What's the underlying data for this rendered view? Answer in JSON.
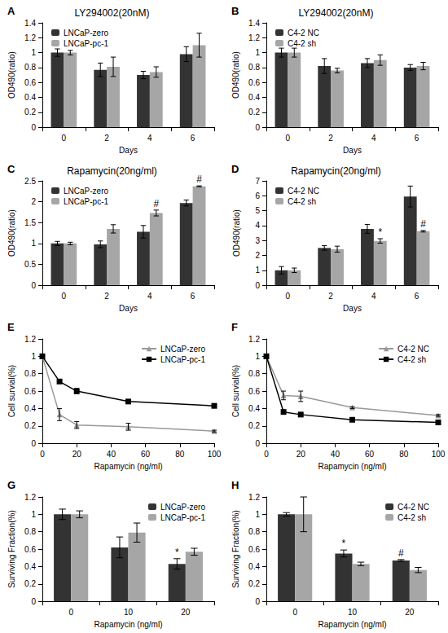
{
  "chart_data": [
    {
      "panel": "A",
      "type": "bar",
      "title": "LY294002(20nM)",
      "x_label": "Days",
      "y_label": "OD490(ratio)",
      "categories": [
        "0",
        "2",
        "4",
        "6"
      ],
      "ylim": [
        0,
        1.4
      ],
      "yticks": [
        0,
        0.2,
        0.4,
        0.6,
        0.8,
        1,
        1.2,
        1.4
      ],
      "grid": false,
      "legend": "upper left",
      "series": [
        {
          "name": "LNCaP-zero",
          "color": "#333333",
          "values": [
            1,
            0.77,
            0.7,
            0.98
          ],
          "errors": [
            0.05,
            0.09,
            0.05,
            0.1
          ]
        },
        {
          "name": "LNCaP-pc-1",
          "color": "#a6a6a6",
          "values": [
            1,
            0.81,
            0.74,
            1.1
          ],
          "errors": [
            0.03,
            0.13,
            0.07,
            0.16
          ]
        }
      ]
    },
    {
      "panel": "B",
      "type": "bar",
      "title": "LY294002(20nM)",
      "x_label": "Days",
      "y_label": "OD490(ratio)",
      "categories": [
        "0",
        "2",
        "4",
        "6"
      ],
      "ylim": [
        0,
        1.4
      ],
      "yticks": [
        0,
        0.2,
        0.4,
        0.6,
        0.8,
        1,
        1.2,
        1.4
      ],
      "grid": false,
      "legend": "upper left",
      "series": [
        {
          "name": "C4-2 NC",
          "color": "#333333",
          "values": [
            1,
            0.82,
            0.86,
            0.8
          ],
          "errors": [
            0.06,
            0.1,
            0.06,
            0.04
          ]
        },
        {
          "name": "C4-2 sh",
          "color": "#a6a6a6",
          "values": [
            1,
            0.76,
            0.9,
            0.82
          ],
          "errors": [
            0.06,
            0.03,
            0.07,
            0.05
          ]
        }
      ]
    },
    {
      "panel": "C",
      "type": "bar",
      "title": "Rapamycin(20ng/ml)",
      "x_label": "Days",
      "y_label": "OD490(ratio)",
      "categories": [
        "0",
        "2",
        "4",
        "6"
      ],
      "ylim": [
        0,
        2.5
      ],
      "yticks": [
        0,
        0.5,
        1,
        1.5,
        2,
        2.5
      ],
      "grid": false,
      "legend": "upper left",
      "series": [
        {
          "name": "LNCaP-zero",
          "color": "#333333",
          "values": [
            1,
            0.98,
            1.28,
            1.97
          ],
          "errors": [
            0.05,
            0.08,
            0.15,
            0.07
          ]
        },
        {
          "name": "LNCaP-pc-1",
          "color": "#a6a6a6",
          "values": [
            1,
            1.35,
            1.73,
            2.37
          ],
          "errors": [
            0.03,
            0.1,
            0.07,
            0.01
          ],
          "sig": [
            null,
            null,
            "#",
            "#"
          ]
        }
      ]
    },
    {
      "panel": "D",
      "type": "bar",
      "title": "Rapamycin(20ng/ml)",
      "x_label": "Days",
      "y_label": "OD490(ratio)",
      "categories": [
        "0",
        "2",
        "4",
        "6"
      ],
      "ylim": [
        0,
        7
      ],
      "yticks": [
        0,
        1,
        2,
        3,
        4,
        5,
        6,
        7
      ],
      "grid": false,
      "legend": "upper left",
      "series": [
        {
          "name": "C4-2 NC",
          "color": "#333333",
          "values": [
            1,
            2.5,
            3.78,
            5.95
          ],
          "errors": [
            0.25,
            0.15,
            0.3,
            0.7
          ]
        },
        {
          "name": "C4-2 sh",
          "color": "#a6a6a6",
          "values": [
            1,
            2.42,
            2.97,
            3.62
          ],
          "errors": [
            0.15,
            0.2,
            0.15,
            0.05
          ],
          "sig": [
            null,
            null,
            "*",
            "#"
          ]
        }
      ]
    },
    {
      "panel": "E",
      "type": "line",
      "x_label": "Rapamycin (ng/ml)",
      "y_label": "Cell survial(%)",
      "x": [
        0,
        10,
        20,
        50,
        100
      ],
      "xlim": [
        0,
        100
      ],
      "xticks": [
        0,
        20,
        40,
        60,
        80,
        100
      ],
      "ylim": [
        0,
        1.2
      ],
      "yticks": [
        0,
        0.2,
        0.4,
        0.6,
        0.8,
        1,
        1.2
      ],
      "grid": false,
      "legend": "upper right",
      "series": [
        {
          "name": "LNCaP-zero",
          "color": "#999999",
          "marker": "triangle",
          "values": [
            1,
            0.33,
            0.21,
            0.19,
            0.14
          ],
          "errors": [
            0,
            0.07,
            0.04,
            0.04,
            0.01
          ]
        },
        {
          "name": "LNCaP-pc-1",
          "color": "#000000",
          "marker": "square",
          "values": [
            1,
            0.71,
            0.6,
            0.48,
            0.43
          ],
          "errors": [
            0,
            0.02,
            0.03,
            0.02,
            0.01
          ]
        }
      ]
    },
    {
      "panel": "F",
      "type": "line",
      "x_label": "Rapamycin (ng/ml)",
      "y_label": "Cell survial(%)",
      "x": [
        0,
        10,
        20,
        50,
        100
      ],
      "xlim": [
        0,
        100
      ],
      "xticks": [
        0,
        20,
        40,
        60,
        80,
        100
      ],
      "ylim": [
        0,
        1.2
      ],
      "yticks": [
        0,
        0.2,
        0.4,
        0.6,
        0.8,
        1,
        1.2
      ],
      "grid": false,
      "legend": "upper right",
      "series": [
        {
          "name": "C4-2 NC",
          "color": "#999999",
          "marker": "triangle",
          "values": [
            1,
            0.55,
            0.54,
            0.41,
            0.32
          ],
          "errors": [
            0,
            0.05,
            0.06,
            0.01,
            0.01
          ]
        },
        {
          "name": "C4-2 sh",
          "color": "#000000",
          "marker": "square",
          "values": [
            1,
            0.36,
            0.33,
            0.27,
            0.24
          ],
          "errors": [
            0,
            0.01,
            0.01,
            0.01,
            0.01
          ]
        }
      ]
    },
    {
      "panel": "G",
      "type": "bar",
      "x_label": "Rapamycin (ng/ml)",
      "y_label": "Surviving Fraction(%)",
      "categories": [
        "0",
        "10",
        "20"
      ],
      "ylim": [
        0,
        1.2
      ],
      "yticks": [
        0,
        0.2,
        0.4,
        0.6,
        0.8,
        1,
        1.2
      ],
      "grid": false,
      "legend": "upper right",
      "series": [
        {
          "name": "LNCaP-zero",
          "color": "#333333",
          "values": [
            1,
            0.62,
            0.43
          ],
          "errors": [
            0.06,
            0.12,
            0.06
          ],
          "sig": [
            null,
            null,
            "*"
          ]
        },
        {
          "name": "LNCaP-pc-1",
          "color": "#a6a6a6",
          "values": [
            1,
            0.79,
            0.57
          ],
          "errors": [
            0.04,
            0.11,
            0.04
          ]
        }
      ]
    },
    {
      "panel": "H",
      "type": "bar",
      "x_label": "Rapamycin (ng/ml)",
      "y_label": "Surviving Fraction(%)",
      "categories": [
        "0",
        "10",
        "20"
      ],
      "ylim": [
        0,
        1.2
      ],
      "yticks": [
        0,
        0.2,
        0.4,
        0.6,
        0.8,
        1,
        1.2
      ],
      "grid": false,
      "legend": "upper right",
      "series": [
        {
          "name": "C4-2 NC",
          "color": "#333333",
          "values": [
            1,
            0.55,
            0.47
          ],
          "errors": [
            0.02,
            0.04,
            0.01
          ],
          "sig": [
            null,
            "*",
            "#"
          ]
        },
        {
          "name": "C4-2 sh",
          "color": "#a6a6a6",
          "values": [
            1,
            0.43,
            0.36
          ],
          "errors": [
            0.2,
            0.02,
            0.03
          ]
        }
      ]
    }
  ]
}
